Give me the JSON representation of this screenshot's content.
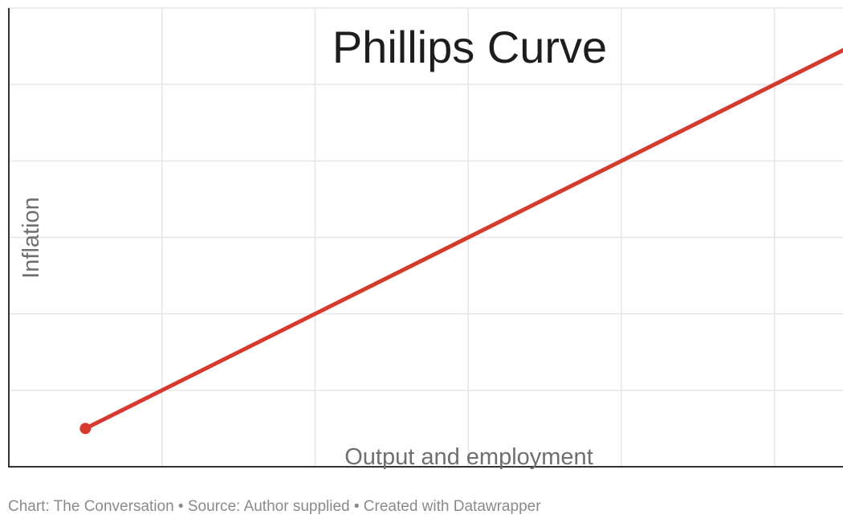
{
  "chart_data": {
    "type": "line",
    "title": "Phillips Curve",
    "xlabel": "Output and employment",
    "ylabel": "Inflation",
    "xlim": [
      0,
      5.5
    ],
    "ylim": [
      0,
      6
    ],
    "grid": true,
    "series": [
      {
        "x": [
          0.5,
          5.5
        ],
        "y": [
          0.5,
          5.5
        ],
        "color": "#d63a2e",
        "start_marker": true
      }
    ]
  },
  "footer": {
    "text": "Chart: The Conversation • Source: Author supplied • Created with Datawrapper"
  },
  "colors": {
    "line": "#d63a2e",
    "grid": "#e6e6e6",
    "axis": "#333333"
  }
}
